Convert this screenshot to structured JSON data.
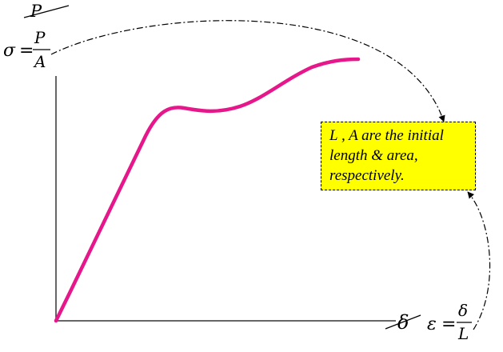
{
  "colors": {
    "curve": "#e6178a",
    "note_fill": "#ffff00",
    "axis": "#333333",
    "ink": "#000000"
  },
  "y_axis": {
    "old_label": "P",
    "stress": {
      "symbol": "σ",
      "equals": "=",
      "numerator": "P",
      "denominator": "A"
    }
  },
  "x_axis": {
    "old_label": "δ",
    "strain": {
      "symbol": "ε",
      "equals": "=",
      "numerator": "δ",
      "denominator": "L"
    }
  },
  "note": {
    "lines": [
      "L , A are the initial",
      "length & area,",
      "respectively."
    ]
  },
  "icons": {
    "strike_marks": "strikethrough-line",
    "connectors": "dash-dot-arrow"
  }
}
